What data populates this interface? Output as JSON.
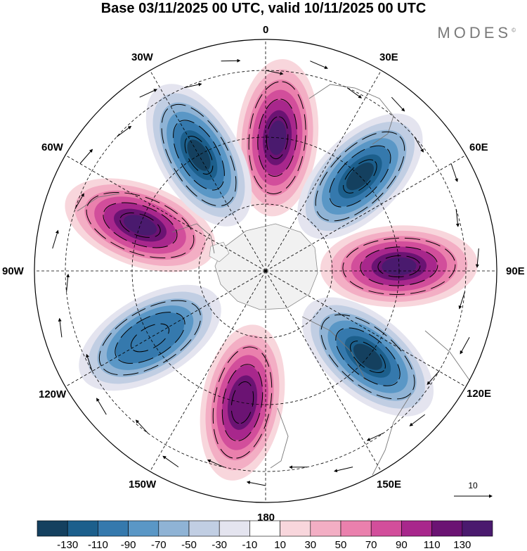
{
  "header": {
    "title": "Base 03/11/2025 00 UTC, valid 10/11/2025 00 UTC",
    "brand": "MODES",
    "brand_mark": "©"
  },
  "map": {
    "projection": "north polar stereographic",
    "longitude_labels": [
      "0",
      "30E",
      "60E",
      "90E",
      "120E",
      "150E",
      "180",
      "150W",
      "120W",
      "90W",
      "60W",
      "30W"
    ],
    "reference_vector": {
      "label": "10"
    },
    "anomaly_lobes": [
      {
        "sign": "positive",
        "center_lon": 5,
        "peak": 130
      },
      {
        "sign": "negative",
        "center_lon": 45,
        "peak": -130
      },
      {
        "sign": "positive",
        "center_lon": 88,
        "peak": 130
      },
      {
        "sign": "negative",
        "center_lon": 130,
        "peak": -130
      },
      {
        "sign": "positive",
        "center_lon": 190,
        "peak": 110
      },
      {
        "sign": "negative",
        "center_lon": 240,
        "peak": -90
      },
      {
        "sign": "positive",
        "center_lon": 290,
        "peak": 130
      },
      {
        "sign": "negative",
        "center_lon": 330,
        "peak": -130
      }
    ]
  },
  "colorbar": {
    "tick_labels": [
      "-130",
      "-110",
      "-90",
      "-70",
      "-50",
      "-30",
      "-10",
      "10",
      "30",
      "50",
      "70",
      "90",
      "110",
      "130"
    ],
    "colors": [
      "#14405f",
      "#1c5f8c",
      "#3579ad",
      "#5a97c6",
      "#8fb3d5",
      "#c1cee3",
      "#e4e4ef",
      "#ffffff",
      "#f8d6dc",
      "#f3aec4",
      "#ea80ad",
      "#d24e9b",
      "#a8278c",
      "#6b1373",
      "#4a1a6e"
    ]
  }
}
